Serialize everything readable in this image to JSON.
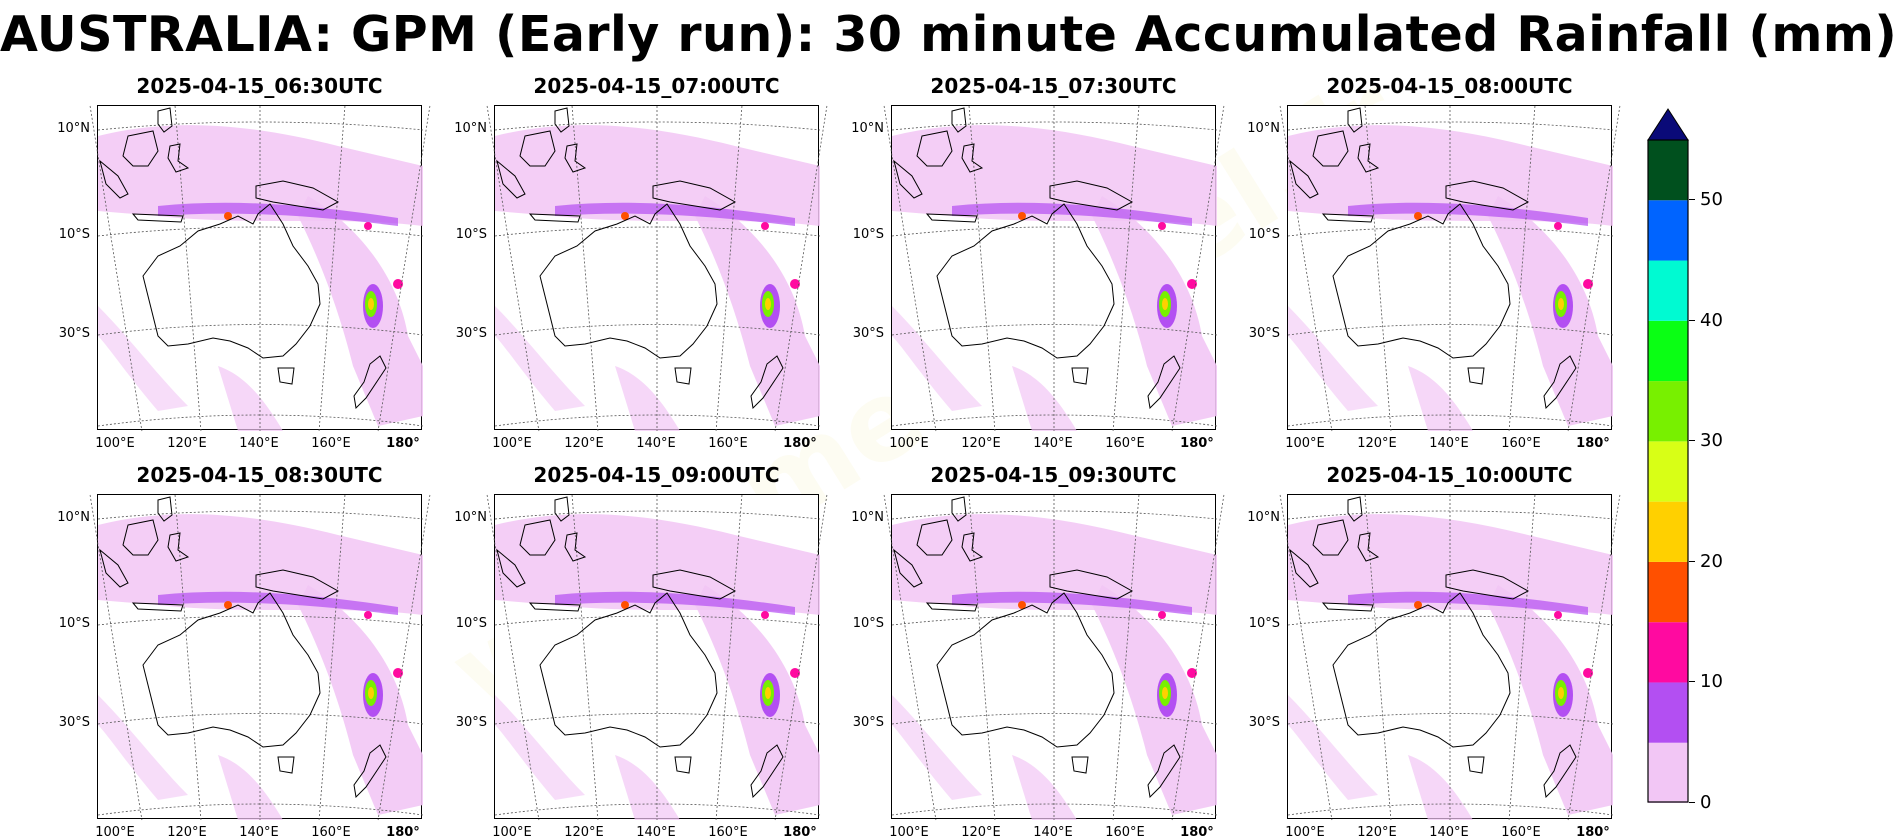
{
  "title": "AUSTRALIA: GPM (Early run): 30 minute Accumulated Rainfall (mm)",
  "watermark": "www.meteociel.fr",
  "map_axes": {
    "lat_labels": [
      "10°N",
      "10°S",
      "30°S"
    ],
    "lon_labels": [
      "100°E",
      "120°E",
      "140°E",
      "160°E",
      "180°"
    ]
  },
  "panels": [
    {
      "time": "2025-04-15_06:30UTC"
    },
    {
      "time": "2025-04-15_07:00UTC"
    },
    {
      "time": "2025-04-15_07:30UTC"
    },
    {
      "time": "2025-04-15_08:00UTC"
    },
    {
      "time": "2025-04-15_08:30UTC"
    },
    {
      "time": "2025-04-15_09:00UTC"
    },
    {
      "time": "2025-04-15_09:30UTC"
    },
    {
      "time": "2025-04-15_10:00UTC"
    }
  ],
  "colorbar": {
    "ticks": [
      "0",
      "10",
      "20",
      "30",
      "40",
      "50"
    ],
    "bins": [
      0,
      5,
      10,
      15,
      20,
      25,
      30,
      35,
      40,
      45,
      50,
      55
    ],
    "colors": [
      "#f2c6f5",
      "#b34ff2",
      "#ff0aa0",
      "#ff5000",
      "#ffd000",
      "#d8ff16",
      "#78f000",
      "#0aff14",
      "#00fad2",
      "#0064ff",
      "#00501e"
    ],
    "extend_color": "#0a0a78"
  }
}
